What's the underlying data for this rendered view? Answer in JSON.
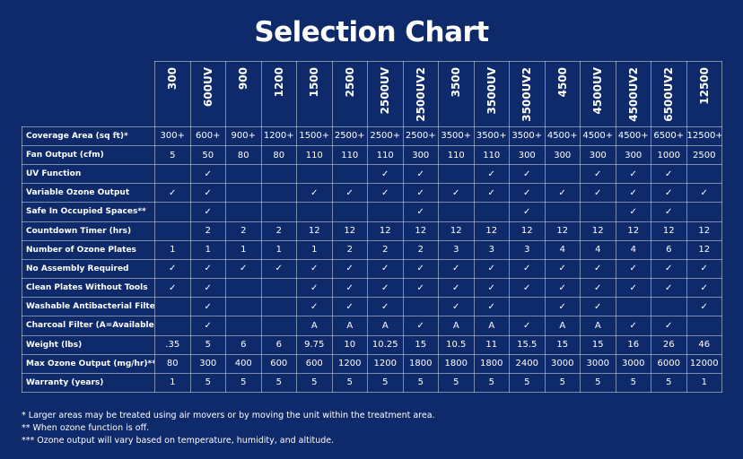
{
  "title": "Selection Chart",
  "columns": [
    "300",
    "600UV",
    "900",
    "1200",
    "1500",
    "2500",
    "2500UV",
    "2500UV2",
    "3500",
    "3500UV",
    "3500UV2",
    "4500",
    "4500UV",
    "4500UV2",
    "6500UV2",
    "12500"
  ],
  "rows": [
    {
      "label": "Coverage Area (sq ft)*",
      "cells": [
        "300+",
        "600+",
        "900+",
        "1200+",
        "1500+",
        "2500+",
        "2500+",
        "2500+",
        "3500+",
        "3500+",
        "3500+",
        "4500+",
        "4500+",
        "4500+",
        "6500+",
        "12500+"
      ]
    },
    {
      "label": "Fan Output (cfm)",
      "cells": [
        "5",
        "50",
        "80",
        "80",
        "110",
        "110",
        "110",
        "300",
        "110",
        "110",
        "300",
        "300",
        "300",
        "300",
        "1000",
        "2500"
      ]
    },
    {
      "label": "UV Function",
      "cells": [
        "",
        "✓",
        "",
        "",
        "",
        "",
        "✓",
        "✓",
        "",
        "✓",
        "✓",
        "",
        "✓",
        "✓",
        "✓",
        ""
      ]
    },
    {
      "label": "Variable Ozone Output",
      "cells": [
        "✓",
        "✓",
        "",
        "",
        "✓",
        "✓",
        "✓",
        "✓",
        "✓",
        "✓",
        "✓",
        "✓",
        "✓",
        "✓",
        "✓",
        "✓"
      ]
    },
    {
      "label": "Safe In Occupied Spaces**",
      "cells": [
        "",
        "✓",
        "",
        "",
        "",
        "",
        "",
        "✓",
        "",
        "",
        "✓",
        "",
        "",
        "✓",
        "✓",
        ""
      ]
    },
    {
      "label": "Countdown Timer (hrs)",
      "cells": [
        "",
        "2",
        "2",
        "2",
        "12",
        "12",
        "12",
        "12",
        "12",
        "12",
        "12",
        "12",
        "12",
        "12",
        "12",
        "12"
      ]
    },
    {
      "label": "Number of Ozone Plates",
      "cells": [
        "1",
        "1",
        "1",
        "1",
        "1",
        "2",
        "2",
        "2",
        "3",
        "3",
        "3",
        "4",
        "4",
        "4",
        "6",
        "12"
      ]
    },
    {
      "label": "No Assembly Required",
      "cells": [
        "✓",
        "✓",
        "✓",
        "✓",
        "✓",
        "✓",
        "✓",
        "✓",
        "✓",
        "✓",
        "✓",
        "✓",
        "✓",
        "✓",
        "✓",
        "✓"
      ]
    },
    {
      "label": "Clean Plates Without Tools",
      "cells": [
        "✓",
        "✓",
        "",
        "",
        "✓",
        "✓",
        "✓",
        "✓",
        "✓",
        "✓",
        "✓",
        "✓",
        "✓",
        "✓",
        "✓",
        "✓"
      ]
    },
    {
      "label": "Washable Antibacterial Filter",
      "cells": [
        "",
        "✓",
        "",
        "",
        "✓",
        "✓",
        "✓",
        "",
        "✓",
        "✓",
        "",
        "✓",
        "✓",
        "",
        "",
        "✓"
      ]
    },
    {
      "label": "Charcoal Filter (A=Available)",
      "cells": [
        "",
        "✓",
        "",
        "",
        "A",
        "A",
        "A",
        "✓",
        "A",
        "A",
        "✓",
        "A",
        "A",
        "✓",
        "✓",
        ""
      ]
    },
    {
      "label": "Weight (lbs)",
      "cells": [
        ".35",
        "5",
        "6",
        "6",
        "9.75",
        "10",
        "10.25",
        "15",
        "10.5",
        "11",
        "15.5",
        "15",
        "15",
        "16",
        "26",
        "46"
      ]
    },
    {
      "label": "Max Ozone Output (mg/hr)***",
      "cells": [
        "80",
        "300",
        "400",
        "600",
        "600",
        "1200",
        "1200",
        "1800",
        "1800",
        "1800",
        "2400",
        "3000",
        "3000",
        "3000",
        "6000",
        "12000"
      ]
    },
    {
      "label": "Warranty (years)",
      "cells": [
        "1",
        "5",
        "5",
        "5",
        "5",
        "5",
        "5",
        "5",
        "5",
        "5",
        "5",
        "5",
        "5",
        "5",
        "5",
        "1"
      ]
    }
  ],
  "footnotes": [
    "* Larger areas may be treated using air movers or by moving the unit within the treatment area.",
    "** When ozone function is off.",
    "*** Ozone output will vary based on temperature, humidity, and altitude."
  ],
  "colors": {
    "background": "#0e2a6b",
    "text": "#ffffff",
    "grid": "rgba(255,255,255,0.45)"
  }
}
